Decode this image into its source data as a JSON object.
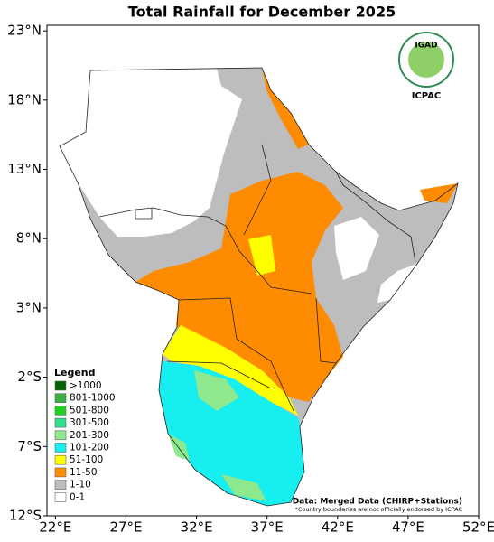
{
  "map": {
    "title": "Total Rainfall for December 2025",
    "xlim": [
      21.4,
      52
    ],
    "ylim": [
      -12,
      23.4
    ],
    "xticks": [
      {
        "value": 22,
        "label": "22°E"
      },
      {
        "value": 27,
        "label": "27°E"
      },
      {
        "value": 32,
        "label": "32°E"
      },
      {
        "value": 37,
        "label": "37°E"
      },
      {
        "value": 42,
        "label": "42°E"
      },
      {
        "value": 47,
        "label": "47°E"
      },
      {
        "value": 52,
        "label": "52°E"
      }
    ],
    "yticks": [
      {
        "value": 23,
        "label": "23°N"
      },
      {
        "value": 18,
        "label": "18°N"
      },
      {
        "value": 13,
        "label": "13°N"
      },
      {
        "value": 8,
        "label": "8°N"
      },
      {
        "value": 3,
        "label": "3°N"
      },
      {
        "value": -2,
        "label": "2°S"
      },
      {
        "value": -7,
        "label": "7°S"
      },
      {
        "value": -12,
        "label": "12°S"
      }
    ],
    "legend": {
      "title": "Legend",
      "items": [
        {
          "label": ">1000",
          "color": "#006400"
        },
        {
          "label": "801-1000",
          "color": "#3cb043"
        },
        {
          "label": "501-800",
          "color": "#1fd21f"
        },
        {
          "label": "301-500",
          "color": "#2fe08a"
        },
        {
          "label": "201-300",
          "color": "#8ee88e"
        },
        {
          "label": "101-200",
          "color": "#16eef0"
        },
        {
          "label": "51-100",
          "color": "#ffff00"
        },
        {
          "label": "11-50",
          "color": "#ff8c00"
        },
        {
          "label": "1-10",
          "color": "#bdbdbd"
        },
        {
          "label": "0-1",
          "color": "#ffffff"
        }
      ]
    },
    "logo": {
      "top": "IGAD",
      "bottom": "ICPAC"
    },
    "source": "Data: Merged Data (CHIRP+Stations)",
    "note": "*Country boundaries are not officially endorsed by ICPAC"
  }
}
